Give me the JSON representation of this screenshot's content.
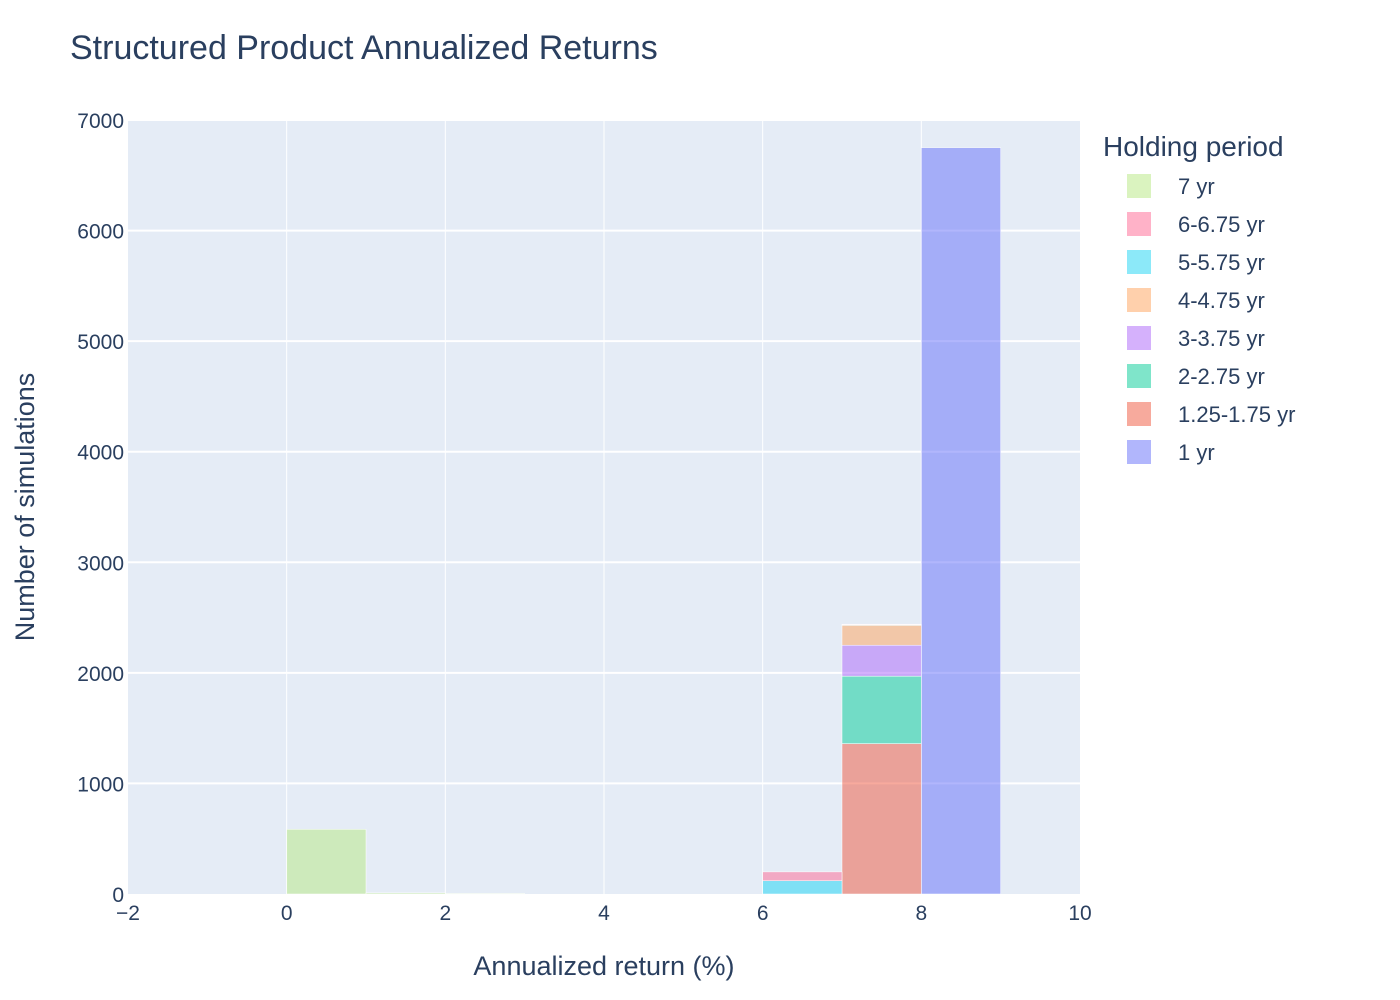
{
  "chart_data": {
    "type": "bar",
    "stacked": true,
    "title": "Structured Product Annualized Returns",
    "xlabel": "Annualized return (%)",
    "ylabel": "Number of simulations",
    "xlim": [
      -2,
      10
    ],
    "ylim": [
      0,
      7000
    ],
    "x_ticks": [
      -2,
      0,
      2,
      4,
      6,
      8,
      10
    ],
    "x_tick_labels": [
      "−2",
      "0",
      "2",
      "4",
      "6",
      "8",
      "10"
    ],
    "y_ticks": [
      0,
      1000,
      2000,
      3000,
      4000,
      5000,
      6000,
      7000
    ],
    "y_tick_labels": [
      "0",
      "1000",
      "2000",
      "3000",
      "4000",
      "5000",
      "6000",
      "7000"
    ],
    "grid": true,
    "legend": {
      "title": "Holding period",
      "placement": "right"
    },
    "bin_edges": [
      0,
      1,
      2,
      3,
      4,
      5,
      6,
      7,
      8,
      9
    ],
    "series": [
      {
        "name": "1 yr",
        "color": "#636efa",
        "bins": [
          {
            "x0": 8,
            "x1": 9,
            "value": 6750
          }
        ]
      },
      {
        "name": "1.25-1.75 yr",
        "color": "#ef553b",
        "bins": [
          {
            "x0": 7,
            "x1": 8,
            "value": 1360
          }
        ]
      },
      {
        "name": "2-2.75 yr",
        "color": "#00cc96",
        "bins": [
          {
            "x0": 7,
            "x1": 8,
            "value": 610
          }
        ]
      },
      {
        "name": "3-3.75 yr",
        "color": "#ab63fa",
        "bins": [
          {
            "x0": 7,
            "x1": 8,
            "value": 280
          }
        ]
      },
      {
        "name": "4-4.75 yr",
        "color": "#ffa15a",
        "bins": [
          {
            "x0": 7,
            "x1": 8,
            "value": 180
          }
        ]
      },
      {
        "name": "5-5.75 yr",
        "color": "#19d3f3",
        "bins": [
          {
            "x0": 6,
            "x1": 7,
            "value": 120
          },
          {
            "x0": 7,
            "x1": 8,
            "value": 5
          }
        ]
      },
      {
        "name": "6-6.75 yr",
        "color": "#ff6692",
        "bins": [
          {
            "x0": 6,
            "x1": 7,
            "value": 80
          },
          {
            "x0": 7,
            "x1": 8,
            "value": 5
          }
        ]
      },
      {
        "name": "7 yr",
        "color": "#b6e880",
        "bins": [
          {
            "x0": 0,
            "x1": 1,
            "value": 585
          },
          {
            "x0": 1,
            "x1": 2,
            "value": 10
          },
          {
            "x0": 2,
            "x1": 3,
            "value": 5
          }
        ]
      }
    ],
    "legend_order": [
      "7 yr",
      "6-6.75 yr",
      "5-5.75 yr",
      "4-4.75 yr",
      "3-3.75 yr",
      "2-2.75 yr",
      "1.25-1.75 yr",
      "1 yr"
    ]
  }
}
